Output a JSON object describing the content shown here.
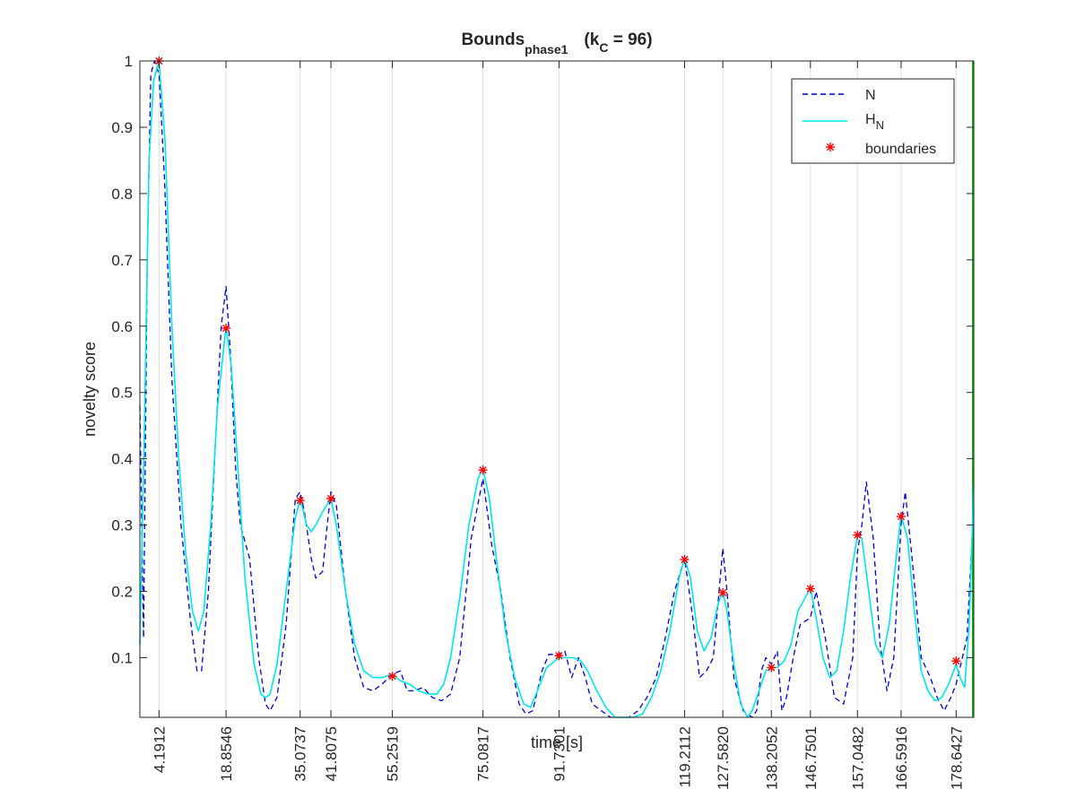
{
  "chart_data": {
    "type": "line",
    "title_main": "Bounds",
    "title_sub": "phase1",
    "title_params_prefix": "(k",
    "title_params_sub": "C",
    "title_params_suffix": " = 96)",
    "xlabel": "time [s]",
    "ylabel": "novelty score",
    "xlim": [
      0,
      182.5
    ],
    "ylim": [
      0.01,
      1
    ],
    "yticks": [
      0.1,
      0.2,
      0.3,
      0.4,
      0.5,
      0.6,
      0.7,
      0.8,
      0.9,
      1
    ],
    "ytick_labels": [
      "0.1",
      "0.2",
      "0.3",
      "0.4",
      "0.5",
      "0.6",
      "0.7",
      "0.8",
      "0.9",
      "1"
    ],
    "xticks": [
      4.1912,
      18.8546,
      35.0737,
      41.8075,
      55.2519,
      75.0817,
      91.7301,
      119.2112,
      127.582,
      138.2052,
      146.7501,
      157.0482,
      166.5916,
      178.6427
    ],
    "xtick_labels": [
      "4.1912",
      "18.8546",
      "35.0737",
      "41.8075",
      "55.2519",
      "75.0817",
      "91.7301",
      "119.2112",
      "127.5820",
      "138.2052",
      "146.7501",
      "157.0482",
      "166.5916",
      "178.6427"
    ],
    "grid": "x",
    "legend": {
      "location": "top-right",
      "entries": [
        {
          "label": "N",
          "style": "dashed",
          "color": "#0000cc"
        },
        {
          "label": "H",
          "sub": "N",
          "style": "solid",
          "color": "#00e6e6"
        },
        {
          "label": "boundaries",
          "style": "marker-asterisk",
          "color": "#ff0000"
        }
      ]
    },
    "end_line": {
      "x": 182.5,
      "color": "#00bb00"
    },
    "series": [
      {
        "name": "N",
        "style": "dashed",
        "color": "#0000cc",
        "x": [
          0,
          0.8,
          1.6,
          2.4,
          3.2,
          4.2,
          5.4,
          7,
          9,
          11,
          12.5,
          13.5,
          15,
          16.5,
          17.8,
          18.85,
          19.8,
          21,
          22,
          24,
          26,
          27.5,
          28.5,
          30,
          32,
          34,
          35.07,
          36,
          37.5,
          38.5,
          40,
          41,
          41.8,
          43,
          45,
          47,
          49,
          51,
          53,
          55.25,
          57,
          58.5,
          60,
          62,
          64,
          66,
          68,
          70,
          72.5,
          75.08,
          77,
          79,
          81,
          83,
          84.5,
          86,
          88,
          89.5,
          91.73,
          93,
          94.5,
          96,
          97.5,
          99,
          101,
          103,
          105,
          107,
          109,
          111,
          113,
          115,
          117,
          119.21,
          121,
          122.5,
          124,
          125.5,
          127,
          127.58,
          128.5,
          130,
          132,
          134,
          135,
          136,
          137,
          138.2,
          139.5,
          140.5,
          141.5,
          143,
          144.5,
          146.75,
          148,
          150,
          152,
          154,
          156,
          157.05,
          158,
          159,
          160.5,
          162,
          163.5,
          165,
          166.59,
          167.5,
          169,
          171,
          173,
          174.5,
          176,
          177.5,
          178.64,
          180,
          181,
          182.5
        ],
        "y": [
          0.48,
          0.13,
          0.7,
          0.98,
          1.0,
          0.98,
          0.82,
          0.52,
          0.3,
          0.16,
          0.08,
          0.08,
          0.2,
          0.42,
          0.6,
          0.66,
          0.56,
          0.38,
          0.3,
          0.25,
          0.1,
          0.03,
          0.02,
          0.04,
          0.15,
          0.34,
          0.35,
          0.32,
          0.25,
          0.22,
          0.23,
          0.3,
          0.35,
          0.33,
          0.2,
          0.1,
          0.055,
          0.05,
          0.06,
          0.075,
          0.08,
          0.05,
          0.05,
          0.055,
          0.04,
          0.035,
          0.045,
          0.1,
          0.28,
          0.37,
          0.27,
          0.2,
          0.1,
          0.03,
          0.015,
          0.02,
          0.08,
          0.105,
          0.105,
          0.11,
          0.07,
          0.1,
          0.07,
          0.03,
          0.02,
          0.005,
          0.005,
          0.01,
          0.02,
          0.04,
          0.07,
          0.13,
          0.2,
          0.25,
          0.16,
          0.07,
          0.08,
          0.1,
          0.22,
          0.265,
          0.2,
          0.07,
          0.02,
          0.005,
          0.02,
          0.08,
          0.1,
          0.09,
          0.11,
          0.02,
          0.04,
          0.1,
          0.15,
          0.16,
          0.2,
          0.13,
          0.04,
          0.03,
          0.1,
          0.26,
          0.3,
          0.365,
          0.28,
          0.12,
          0.05,
          0.1,
          0.3,
          0.35,
          0.25,
          0.1,
          0.07,
          0.04,
          0.02,
          0.04,
          0.06,
          0.1,
          0.13,
          0.33
        ]
      },
      {
        "name": "H",
        "style": "solid",
        "color": "#00e6e6",
        "x": [
          0,
          1,
          2,
          3,
          4.2,
          5.5,
          7,
          8.5,
          10,
          11.5,
          12.8,
          14,
          15.5,
          17,
          18.85,
          20,
          21.5,
          23,
          25,
          26.5,
          27.5,
          28.5,
          30,
          32,
          34,
          35.07,
          36.5,
          37.5,
          38.5,
          40,
          41.8,
          43,
          45,
          47,
          49,
          51,
          53,
          55.25,
          57,
          59,
          61,
          63,
          65,
          66.5,
          68,
          70,
          72,
          74,
          75.08,
          76.5,
          78,
          80,
          82,
          84,
          85.5,
          87,
          89,
          91.73,
          93.5,
          95,
          96.5,
          98,
          100,
          102,
          104,
          106,
          108,
          110,
          112,
          114,
          116,
          118,
          119.21,
          120.5,
          122,
          123.5,
          125,
          126.5,
          127.58,
          128.5,
          130,
          131.5,
          133,
          134,
          135.5,
          137,
          138.2,
          139.5,
          141,
          142.5,
          144,
          146.75,
          148,
          149.5,
          151,
          152.5,
          154,
          155.5,
          157.05,
          158,
          159.5,
          161,
          162.5,
          164,
          165.5,
          166.59,
          168,
          169.5,
          171,
          172.5,
          174,
          175.5,
          177,
          178.64,
          179.5,
          180.5,
          181.5,
          182.5
        ],
        "y": [
          0.12,
          0.45,
          0.85,
          0.97,
          1.0,
          0.88,
          0.6,
          0.4,
          0.26,
          0.17,
          0.14,
          0.17,
          0.3,
          0.48,
          0.6,
          0.54,
          0.38,
          0.22,
          0.09,
          0.045,
          0.04,
          0.045,
          0.09,
          0.2,
          0.31,
          0.34,
          0.3,
          0.29,
          0.3,
          0.32,
          0.34,
          0.3,
          0.2,
          0.12,
          0.08,
          0.07,
          0.07,
          0.075,
          0.065,
          0.06,
          0.05,
          0.045,
          0.045,
          0.06,
          0.1,
          0.19,
          0.3,
          0.37,
          0.385,
          0.34,
          0.25,
          0.14,
          0.07,
          0.03,
          0.025,
          0.05,
          0.085,
          0.1,
          0.1,
          0.1,
          0.095,
          0.08,
          0.05,
          0.025,
          0.01,
          0.005,
          0.005,
          0.015,
          0.04,
          0.08,
          0.14,
          0.22,
          0.25,
          0.22,
          0.14,
          0.11,
          0.13,
          0.18,
          0.2,
          0.17,
          0.09,
          0.03,
          0.01,
          0.02,
          0.05,
          0.08,
          0.085,
          0.085,
          0.095,
          0.12,
          0.17,
          0.205,
          0.16,
          0.1,
          0.07,
          0.08,
          0.14,
          0.22,
          0.285,
          0.28,
          0.2,
          0.12,
          0.1,
          0.15,
          0.25,
          0.315,
          0.28,
          0.17,
          0.08,
          0.05,
          0.035,
          0.04,
          0.06,
          0.09,
          0.07,
          0.055,
          0.15,
          0.36
        ]
      }
    ],
    "boundaries": {
      "name": "boundaries",
      "x": [
        4.1912,
        18.8546,
        35.0737,
        41.8075,
        55.2519,
        75.0817,
        91.7301,
        119.2112,
        127.582,
        138.2052,
        146.7501,
        157.0482,
        166.5916,
        178.6427
      ],
      "y": [
        1.0,
        0.597,
        0.337,
        0.34,
        0.072,
        0.383,
        0.103,
        0.248,
        0.198,
        0.085,
        0.204,
        0.285,
        0.313,
        0.095
      ]
    }
  }
}
